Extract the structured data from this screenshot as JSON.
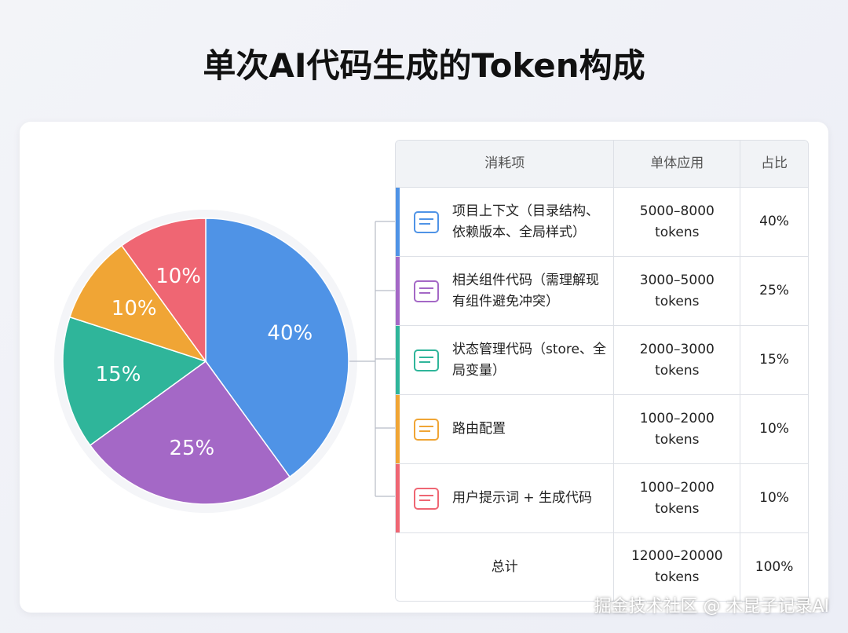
{
  "title": "单次AI代码生成的Token构成",
  "chart_data": {
    "type": "pie",
    "values": [
      40,
      25,
      15,
      10,
      10
    ],
    "value_labels": [
      "40%",
      "25%",
      "15%",
      "10%",
      "10%"
    ],
    "colors": [
      "#4f93e6",
      "#a468c6",
      "#2fb59a",
      "#f0a535",
      "#ef6673"
    ]
  },
  "table": {
    "header": [
      "消耗项",
      "单体应用",
      "占比"
    ],
    "rows": [
      [
        "项目上下文（目录结构、依赖版本、全局样式）",
        "5000–8000 tokens",
        "40%"
      ],
      [
        "相关组件代码（需理解现有组件避免冲突）",
        "3000–5000 tokens",
        "25%"
      ],
      [
        "状态管理代码（store、全局变量）",
        "2000–3000 tokens",
        "15%"
      ],
      [
        "路由配置",
        "1000–2000 tokens",
        "10%"
      ],
      [
        "用户提示词 + 生成代码",
        "1000–2000 tokens",
        "10%"
      ],
      [
        "总计",
        "12000–20000 tokens",
        "100%"
      ]
    ]
  },
  "watermark": "掘金技术社区 @ 木昆子记录AI"
}
